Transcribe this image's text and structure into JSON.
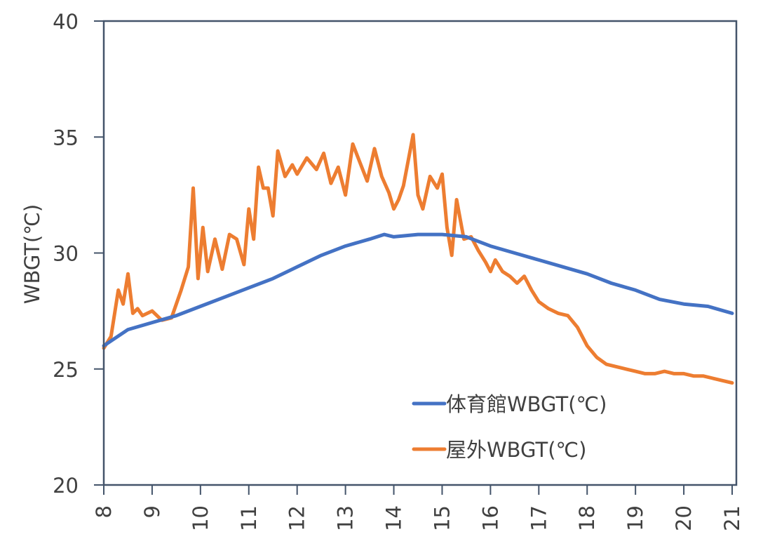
{
  "chart_data": {
    "type": "line",
    "title": "",
    "xlabel": "",
    "ylabel": "WBGT(℃)",
    "xlim": [
      8,
      21
    ],
    "ylim": [
      20,
      40
    ],
    "x_ticks": [
      "8",
      "9",
      "10",
      "11",
      "12",
      "13",
      "14",
      "15",
      "16",
      "17",
      "18",
      "19",
      "20",
      "21"
    ],
    "y_ticks": [
      "20",
      "25",
      "30",
      "35",
      "40"
    ],
    "grid": false,
    "legend_position": "bottom-right",
    "series": [
      {
        "name": "体育館WBGT(℃)",
        "color": "#4472C4",
        "x": [
          8.0,
          8.5,
          9.0,
          9.5,
          10.0,
          10.5,
          11.0,
          11.5,
          12.0,
          12.5,
          13.0,
          13.5,
          13.8,
          14.0,
          14.5,
          15.0,
          15.5,
          16.0,
          16.5,
          17.0,
          17.5,
          18.0,
          18.5,
          19.0,
          19.5,
          20.0,
          20.5,
          21.0
        ],
        "y": [
          26.0,
          26.7,
          27.0,
          27.3,
          27.7,
          28.1,
          28.5,
          28.9,
          29.4,
          29.9,
          30.3,
          30.6,
          30.8,
          30.7,
          30.8,
          30.8,
          30.7,
          30.3,
          30.0,
          29.7,
          29.4,
          29.1,
          28.7,
          28.4,
          28.0,
          27.8,
          27.7,
          27.4
        ]
      },
      {
        "name": "屋外WBGT(℃)",
        "color": "#ED7D31",
        "x": [
          8.0,
          8.15,
          8.3,
          8.4,
          8.5,
          8.6,
          8.7,
          8.8,
          9.0,
          9.2,
          9.4,
          9.6,
          9.75,
          9.85,
          9.95,
          10.05,
          10.15,
          10.3,
          10.45,
          10.6,
          10.75,
          10.9,
          11.0,
          11.1,
          11.2,
          11.3,
          11.4,
          11.5,
          11.6,
          11.75,
          11.9,
          12.0,
          12.2,
          12.4,
          12.55,
          12.7,
          12.85,
          13.0,
          13.15,
          13.3,
          13.45,
          13.6,
          13.75,
          13.9,
          14.0,
          14.1,
          14.2,
          14.3,
          14.4,
          14.5,
          14.6,
          14.75,
          14.9,
          15.0,
          15.1,
          15.2,
          15.3,
          15.45,
          15.6,
          15.75,
          15.9,
          16.0,
          16.1,
          16.25,
          16.4,
          16.55,
          16.7,
          16.85,
          17.0,
          17.2,
          17.4,
          17.6,
          17.8,
          18.0,
          18.2,
          18.4,
          18.6,
          18.8,
          19.0,
          19.2,
          19.4,
          19.6,
          19.8,
          20.0,
          20.2,
          20.4,
          20.6,
          20.8,
          21.0
        ],
        "y": [
          25.9,
          26.4,
          28.4,
          27.8,
          29.1,
          27.4,
          27.6,
          27.3,
          27.5,
          27.1,
          27.2,
          28.4,
          29.4,
          32.8,
          28.9,
          31.1,
          29.2,
          30.6,
          29.3,
          30.8,
          30.6,
          29.5,
          31.9,
          30.6,
          33.7,
          32.8,
          32.8,
          31.6,
          34.4,
          33.3,
          33.8,
          33.4,
          34.1,
          33.6,
          34.3,
          33.0,
          33.7,
          32.5,
          34.7,
          33.9,
          33.1,
          34.5,
          33.3,
          32.6,
          31.9,
          32.3,
          32.9,
          34.0,
          35.1,
          32.5,
          31.9,
          33.3,
          32.8,
          33.4,
          31.1,
          29.9,
          32.3,
          30.6,
          30.7,
          30.1,
          29.6,
          29.2,
          29.7,
          29.2,
          29.0,
          28.7,
          29.0,
          28.4,
          27.9,
          27.6,
          27.4,
          27.3,
          26.8,
          26.0,
          25.5,
          25.2,
          25.1,
          25.0,
          24.9,
          24.8,
          24.8,
          24.9,
          24.8,
          24.8,
          24.7,
          24.7,
          24.6,
          24.5,
          24.4
        ]
      }
    ]
  }
}
